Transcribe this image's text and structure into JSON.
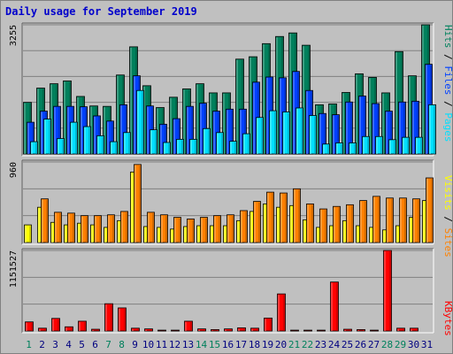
{
  "title": "Daily usage for September 2019",
  "colors": {
    "hits": "#00805c",
    "files": "#0040ff",
    "pages": "#00e0ff",
    "visits": "#ffff00",
    "sites": "#ff8000",
    "kbytes": "#ff0000",
    "weekend_day": "#00805c",
    "weekday": "#000080"
  },
  "chart_data": [
    {
      "type": "bar",
      "title": "Daily usage for September 2019",
      "axis_max_label": "3255",
      "ylim": [
        0,
        3255
      ],
      "grid": true,
      "legend": [
        "Hits",
        "Files",
        "Pages"
      ],
      "legend_placement": "right",
      "categories": [
        "1",
        "2",
        "3",
        "4",
        "5",
        "6",
        "7",
        "8",
        "9",
        "10",
        "11",
        "12",
        "13",
        "14",
        "15",
        "16",
        "17",
        "18",
        "19",
        "20",
        "21",
        "22",
        "23",
        "24",
        "25",
        "26",
        "27",
        "28",
        "29",
        "30",
        "31"
      ],
      "series": [
        {
          "name": "Hits",
          "values": [
            1300,
            1660,
            1770,
            1840,
            1450,
            1210,
            1200,
            1990,
            2700,
            1720,
            1170,
            1430,
            1640,
            1770,
            1540,
            1540,
            2390,
            2450,
            2780,
            2960,
            3050,
            2740,
            1240,
            1260,
            1550,
            2020,
            1930,
            1540,
            2580,
            1970,
            3255
          ]
        },
        {
          "name": "Files",
          "values": [
            800,
            1080,
            1200,
            1200,
            1190,
            960,
            830,
            1240,
            1970,
            1210,
            750,
            890,
            1200,
            1280,
            1080,
            1130,
            1130,
            1810,
            1940,
            1920,
            2080,
            1600,
            1020,
            990,
            1310,
            1460,
            1270,
            1080,
            1310,
            1330,
            2260
          ]
        },
        {
          "name": "Pages",
          "values": [
            310,
            880,
            390,
            800,
            690,
            460,
            310,
            540,
            1600,
            610,
            290,
            370,
            370,
            640,
            540,
            320,
            510,
            920,
            1090,
            1060,
            1160,
            970,
            250,
            280,
            280,
            440,
            440,
            360,
            420,
            420,
            1240
          ]
        }
      ]
    },
    {
      "type": "bar",
      "axis_max_label": "960",
      "ylim": [
        0,
        960
      ],
      "grid": true,
      "legend": [
        "Visits",
        "Sites"
      ],
      "legend_placement": "right",
      "categories": [
        "1",
        "2",
        "3",
        "4",
        "5",
        "6",
        "7",
        "8",
        "9",
        "10",
        "11",
        "12",
        "13",
        "14",
        "15",
        "16",
        "17",
        "18",
        "19",
        "20",
        "21",
        "22",
        "23",
        "24",
        "25",
        "26",
        "27",
        "28",
        "29",
        "30",
        "31"
      ],
      "series": [
        {
          "name": "Visits",
          "values": [
            210,
            420,
            240,
            210,
            230,
            210,
            180,
            260,
            840,
            190,
            180,
            160,
            190,
            200,
            200,
            200,
            260,
            370,
            460,
            420,
            440,
            270,
            180,
            200,
            260,
            200,
            180,
            150,
            200,
            300,
            500
          ]
        },
        {
          "name": "Sites",
          "values": [
            0,
            520,
            360,
            350,
            320,
            320,
            330,
            370,
            930,
            360,
            330,
            300,
            280,
            300,
            320,
            330,
            380,
            490,
            600,
            590,
            640,
            460,
            400,
            430,
            450,
            500,
            550,
            530,
            530,
            520,
            770
          ]
        }
      ]
    },
    {
      "type": "bar",
      "axis_max_label": "1151527",
      "ylim": [
        0,
        1151527
      ],
      "grid": true,
      "legend": [
        "KBytes"
      ],
      "legend_placement": "right",
      "categories": [
        "1",
        "2",
        "3",
        "4",
        "5",
        "6",
        "7",
        "8",
        "9",
        "10",
        "11",
        "12",
        "13",
        "14",
        "15",
        "16",
        "17",
        "18",
        "19",
        "20",
        "21",
        "22",
        "23",
        "24",
        "25",
        "26",
        "27",
        "28",
        "29",
        "30",
        "31"
      ],
      "series": [
        {
          "name": "KBytes",
          "values": [
            130000,
            40000,
            180000,
            60000,
            140000,
            25000,
            390000,
            330000,
            40000,
            30000,
            12000,
            12000,
            140000,
            30000,
            20000,
            30000,
            45000,
            40000,
            185000,
            530000,
            12000,
            12000,
            12000,
            700000,
            25000,
            20000,
            12000,
            1151527,
            40000,
            40000,
            0
          ]
        }
      ]
    }
  ]
}
